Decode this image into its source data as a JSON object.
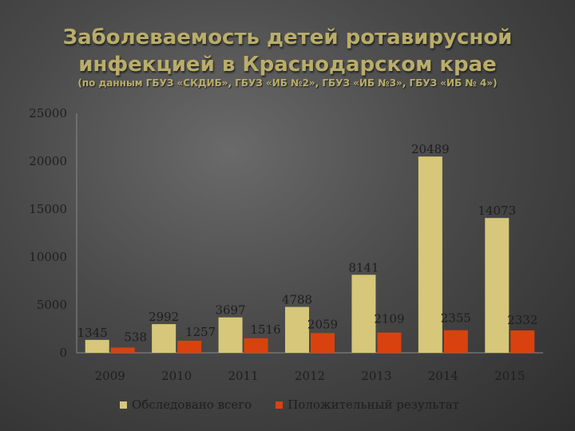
{
  "header": {
    "title_line1": "Заболеваемость детей ротавирусной",
    "title_line2": "инфекцией в Краснодарском крае",
    "subtitle": "(по данным ГБУЗ «СКДИБ», ГБУЗ «ИБ №2», ГБУЗ «ИБ №3», ГБУЗ «ИБ № 4»)"
  },
  "colors": {
    "series1": "#d6c77a",
    "series2": "#d9420e",
    "axis": "#8a8a8a"
  },
  "chart_data": {
    "type": "bar",
    "categories": [
      "2009",
      "2010",
      "2011",
      "2012",
      "2013",
      "2014",
      "2015"
    ],
    "series": [
      {
        "name": "Обследовано всего",
        "values": [
          1345,
          2992,
          3697,
          4788,
          8141,
          20489,
          14073
        ]
      },
      {
        "name": "Положительный результат",
        "values": [
          538,
          1257,
          1516,
          2059,
          2109,
          2355,
          2332
        ]
      }
    ],
    "ylim": [
      0,
      25000
    ],
    "yticks": [
      0,
      5000,
      10000,
      15000,
      20000,
      25000
    ],
    "grid": false,
    "legend": "bottom"
  }
}
